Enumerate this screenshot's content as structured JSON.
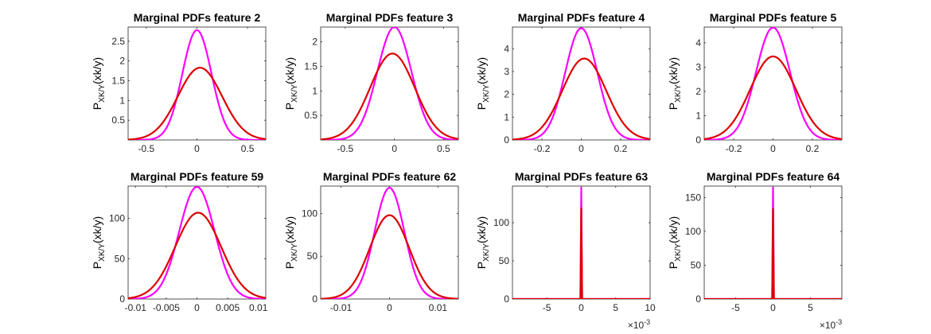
{
  "chart_data": [
    {
      "type": "line",
      "title": "Marginal PDFs  feature 2",
      "ylabel": "P_{XK/Y}(xk/y)",
      "ylabel_main": "P",
      "ylabel_sub": "XK/Y",
      "ylabel_rest": "(xk/y)",
      "xlim": [
        -0.68,
        0.68
      ],
      "ylim": [
        0,
        2.86
      ],
      "xticks": [
        -0.5,
        0,
        0.5
      ],
      "xtick_labels": [
        "-0.5",
        "0",
        "0.5"
      ],
      "yticks": [
        0.5,
        1,
        1.5,
        2,
        2.5
      ],
      "ytick_labels": [
        "0.5",
        "1",
        "1.5",
        "2",
        "2.5"
      ],
      "x_multiplier": "",
      "series": [
        {
          "color": "#ff00ff",
          "mean": 0.0,
          "peak": 2.78
        },
        {
          "color": "#dd0000",
          "mean": 0.03,
          "peak": 1.83
        }
      ]
    },
    {
      "type": "line",
      "title": "Marginal PDFs  feature 3",
      "ylabel": "P_{XK/Y}(xk/y)",
      "ylabel_main": "P",
      "ylabel_sub": "XK/Y",
      "ylabel_rest": "(xk/y)",
      "xlim": [
        -0.75,
        0.65
      ],
      "ylim": [
        0,
        2.3
      ],
      "xticks": [
        -0.5,
        0,
        0.5
      ],
      "xtick_labels": [
        "-0.5",
        "0",
        "0.5"
      ],
      "yticks": [
        0.5,
        1,
        1.5,
        2
      ],
      "ytick_labels": [
        "0.5",
        "1",
        "1.5",
        "2"
      ],
      "x_multiplier": "",
      "series": [
        {
          "color": "#ff00ff",
          "mean": 0.0,
          "peak": 2.3
        },
        {
          "color": "#dd0000",
          "mean": -0.02,
          "peak": 1.76
        }
      ]
    },
    {
      "type": "line",
      "title": "Marginal PDFs  feature 4",
      "ylabel": "P_{XK/Y}(xk/y)",
      "ylabel_main": "P",
      "ylabel_sub": "XK/Y",
      "ylabel_rest": "(xk/y)",
      "xlim": [
        -0.35,
        0.35
      ],
      "ylim": [
        0,
        4.95
      ],
      "xticks": [
        -0.2,
        0,
        0.2
      ],
      "xtick_labels": [
        "-0.2",
        "0",
        "0.2"
      ],
      "yticks": [
        0,
        1,
        2,
        3,
        4
      ],
      "ytick_labels": [
        "0",
        "1",
        "2",
        "3",
        "4"
      ],
      "x_multiplier": "",
      "series": [
        {
          "color": "#ff00ff",
          "mean": 0.0,
          "peak": 4.9
        },
        {
          "color": "#dd0000",
          "mean": 0.015,
          "peak": 3.57
        }
      ]
    },
    {
      "type": "line",
      "title": "Marginal PDFs  feature 5",
      "ylabel": "P_{XK/Y}(xk/y)",
      "ylabel_main": "P",
      "ylabel_sub": "XK/Y",
      "ylabel_rest": "(xk/y)",
      "xlim": [
        -0.35,
        0.35
      ],
      "ylim": [
        0,
        4.65
      ],
      "xticks": [
        -0.2,
        0,
        0.2
      ],
      "xtick_labels": [
        "-0.2",
        "0",
        "0.2"
      ],
      "yticks": [
        0,
        1,
        2,
        3,
        4
      ],
      "ytick_labels": [
        "0",
        "1",
        "2",
        "3",
        "4"
      ],
      "x_multiplier": "",
      "series": [
        {
          "color": "#ff00ff",
          "mean": 0.0,
          "peak": 4.63
        },
        {
          "color": "#dd0000",
          "mean": 0.0,
          "peak": 3.44
        }
      ]
    },
    {
      "type": "line",
      "title": "Marginal PDFs  feature 59",
      "ylabel": "P_{XK/Y}(xk/y)",
      "ylabel_main": "P",
      "ylabel_sub": "XK/Y",
      "ylabel_rest": "(xk/y)",
      "xlim": [
        -0.0112,
        0.0112
      ],
      "ylim": [
        0,
        140
      ],
      "xticks": [
        -0.01,
        -0.005,
        0,
        0.005,
        0.01
      ],
      "xtick_labels": [
        "-0.01",
        "-0.005",
        "0",
        "0.005",
        "0.01"
      ],
      "yticks": [
        0,
        50,
        100
      ],
      "ytick_labels": [
        "0",
        "50",
        "100"
      ],
      "x_multiplier": "",
      "series": [
        {
          "color": "#ff00ff",
          "mean": 0.0,
          "peak": 139
        },
        {
          "color": "#dd0000",
          "mean": 0.0002,
          "peak": 107
        }
      ]
    },
    {
      "type": "line",
      "title": "Marginal PDFs  feature 62",
      "ylabel": "P_{XK/Y}(xk/y)",
      "ylabel_main": "P",
      "ylabel_sub": "XK/Y",
      "ylabel_rest": "(xk/y)",
      "xlim": [
        -0.0142,
        0.0142
      ],
      "ylim": [
        0,
        132
      ],
      "xticks": [
        -0.01,
        0,
        0.01
      ],
      "xtick_labels": [
        "-0.01",
        "0",
        "0.01"
      ],
      "yticks": [
        0,
        50,
        100
      ],
      "ytick_labels": [
        "0",
        "50",
        "100"
      ],
      "x_multiplier": "",
      "series": [
        {
          "color": "#ff00ff",
          "mean": 0.0,
          "peak": 130
        },
        {
          "color": "#dd0000",
          "mean": 0.0,
          "peak": 98
        }
      ]
    },
    {
      "type": "line",
      "title": "Marginal PDFs  feature 63",
      "ylabel": "P_{XK/Y}(xk/y)",
      "ylabel_main": "P",
      "ylabel_sub": "XK/Y",
      "ylabel_rest": "(xk/y)",
      "xlim": [
        -10,
        10
      ],
      "ylim": [
        0,
        148
      ],
      "xticks": [
        -5,
        0,
        5,
        10
      ],
      "xtick_labels": [
        "-5",
        "0",
        "5",
        "10"
      ],
      "yticks": [
        0,
        50,
        100
      ],
      "ytick_labels": [
        "0",
        "50",
        "100"
      ],
      "x_multiplier": "×10^-3",
      "x_multiplier_base": "×10",
      "x_multiplier_exp": "-3",
      "series": [
        {
          "color": "#ff00ff",
          "mean": 0.0,
          "peak": 146
        },
        {
          "color": "#dd0000",
          "mean": 0.0,
          "peak": 119
        }
      ]
    },
    {
      "type": "line",
      "title": "Marginal PDFs  feature 64",
      "ylabel": "P_{XK/Y}(xk/y)",
      "ylabel_main": "P",
      "ylabel_sub": "XK/Y",
      "ylabel_rest": "(xk/y)",
      "xlim": [
        -9.2,
        9.2
      ],
      "ylim": [
        0,
        167
      ],
      "xticks": [
        -5,
        0,
        5
      ],
      "xtick_labels": [
        "-5",
        "0",
        "5"
      ],
      "yticks": [
        0,
        50,
        100,
        150
      ],
      "ytick_labels": [
        "0",
        "50",
        "100",
        "150"
      ],
      "x_multiplier": "×10^-3",
      "x_multiplier_base": "×10",
      "x_multiplier_exp": "-3",
      "series": [
        {
          "color": "#ff00ff",
          "mean": 0.0,
          "peak": 165
        },
        {
          "color": "#dd0000",
          "mean": 0.0,
          "peak": 133
        }
      ]
    }
  ]
}
